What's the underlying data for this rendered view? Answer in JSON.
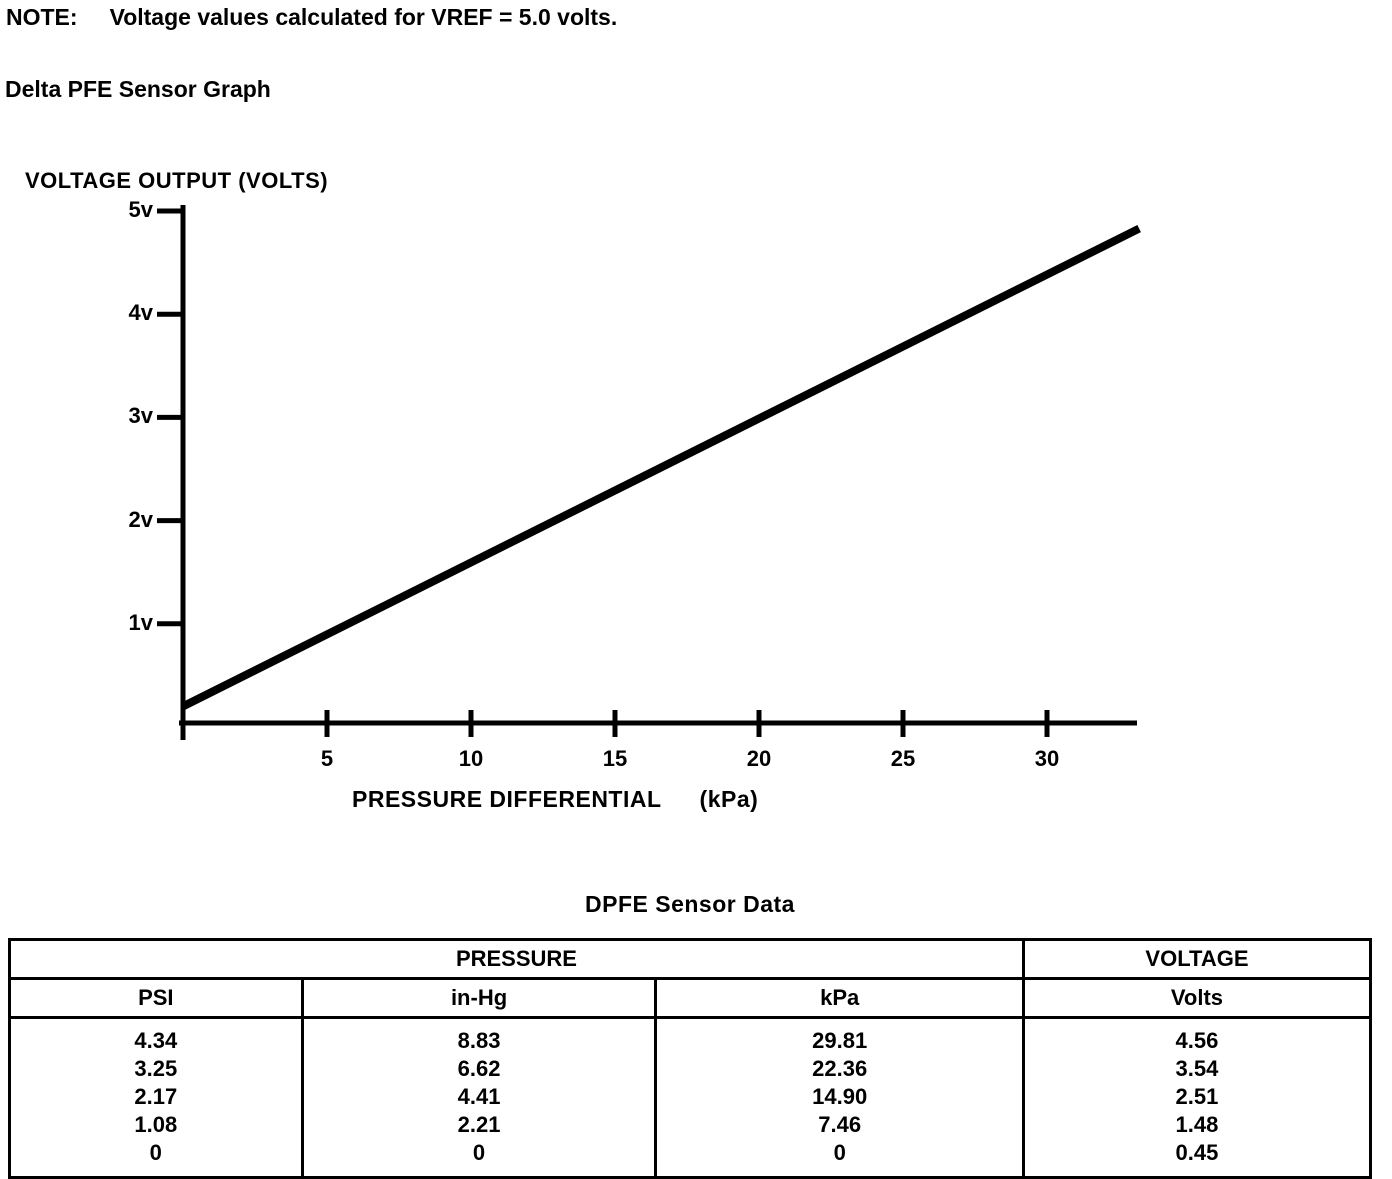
{
  "page": {
    "note_label": "NOTE:",
    "note_text": "Voltage values calculated for VREF = 5.0 volts.",
    "graph_title": "Delta PFE Sensor Graph"
  },
  "chart_data": {
    "type": "line",
    "title": "Delta PFE Sensor Graph",
    "y_axis_title": "VOLTAGE OUTPUT (VOLTS)",
    "x_axis_title": "PRESSURE DIFFERENTIAL",
    "x_axis_unit": "(kPa)",
    "x_ticks": [
      5,
      10,
      15,
      20,
      25,
      30
    ],
    "x_tick_labels": [
      "5",
      "10",
      "15",
      "20",
      "25",
      "30"
    ],
    "y_ticks": [
      1,
      2,
      3,
      4,
      5
    ],
    "y_tick_labels": [
      "1v",
      "2v",
      "3v",
      "4v",
      "5v"
    ],
    "xlim": [
      0,
      33.5
    ],
    "ylim": [
      0,
      5
    ],
    "grid": false,
    "line": {
      "x": [
        0,
        33.2
      ],
      "y": [
        0.2,
        4.83
      ]
    },
    "series_points": {
      "kpa": [
        0,
        7.46,
        14.9,
        22.36,
        29.81
      ],
      "volts": [
        0.45,
        1.48,
        2.51,
        3.54,
        4.56
      ]
    }
  },
  "table": {
    "caption": "DPFE Sensor Data",
    "group_headers": [
      {
        "label": "PRESSURE",
        "span": 3
      },
      {
        "label": "VOLTAGE",
        "span": 1
      }
    ],
    "columns": [
      "PSI",
      "in-Hg",
      "kPa",
      "Volts"
    ],
    "rows": [
      [
        "4.34",
        "8.83",
        "29.81",
        "4.56"
      ],
      [
        "3.25",
        "6.62",
        "22.36",
        "3.54"
      ],
      [
        "2.17",
        "4.41",
        "14.90",
        "2.51"
      ],
      [
        "1.08",
        "2.21",
        "7.46",
        "1.48"
      ],
      [
        "0",
        "0",
        "0",
        "0.45"
      ]
    ]
  }
}
